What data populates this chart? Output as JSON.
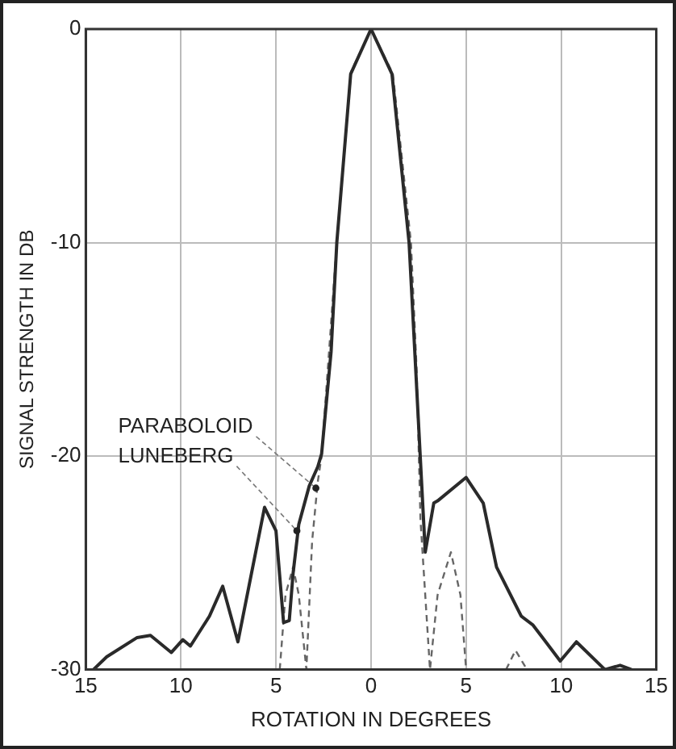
{
  "chart_data": {
    "type": "line",
    "xlabel": "ROTATION IN DEGREES",
    "ylabel": "SIGNAL STRENGTH IN DB",
    "xlim": [
      -15,
      15
    ],
    "xticks": [
      {
        "value": -15,
        "label": "15"
      },
      {
        "value": -10,
        "label": "10"
      },
      {
        "value": -5,
        "label": "5"
      },
      0,
      5,
      10,
      15
    ],
    "ylim": [
      -30,
      0
    ],
    "yticks": [
      -30,
      -20,
      -10,
      0
    ],
    "grid": true,
    "legend": false,
    "marker": "none",
    "series": [
      {
        "color": "#2a2a2a",
        "line_style": "solid",
        "x": [
          -14.6,
          -13.9,
          -12.3,
          -11.6,
          -10.5,
          -9.9,
          -9.5,
          -8.5,
          -7.8,
          -7.0,
          -5.6,
          -5.0,
          -4.6,
          -4.3,
          -4.1,
          -3.8,
          -3.25,
          -2.8,
          -2.6,
          -2.1,
          -1.8,
          -1.07,
          0,
          1.1,
          2.0,
          2.3,
          2.85,
          3.3,
          3.5,
          5.0,
          5.9,
          6.6,
          7.9,
          8.5,
          9.1,
          9.95,
          10.8,
          12.3,
          13.1,
          13.7
        ],
        "values": [
          -30,
          -29.4,
          -28.5,
          -28.4,
          -29.2,
          -28.6,
          -28.9,
          -27.5,
          -26.1,
          -28.7,
          -22.4,
          -23.5,
          -27.8,
          -27.7,
          -25.5,
          -23.2,
          -21.4,
          -20.5,
          -19.9,
          -15.1,
          -10,
          -2.1,
          0,
          -2.1,
          -10,
          -15.1,
          -24.5,
          -22.2,
          -22.1,
          -21.0,
          -22.2,
          -25.2,
          -27.5,
          -27.9,
          -28.6,
          -29.6,
          -28.7,
          -30,
          -29.8,
          -30
        ]
      },
      {
        "color": "#666666",
        "line_style": "dashed",
        "x": [
          -4.8,
          -4.5,
          -4.1,
          -3.8,
          -3.4,
          -3.1,
          -2.8,
          -2.6,
          -1.8,
          -1.05,
          0,
          1.15,
          2.1,
          2.4,
          2.6,
          3.1,
          3.5,
          4.2,
          4.7,
          5.0,
          6,
          7.1,
          7.6,
          8.2
        ],
        "values": [
          -30,
          -26.5,
          -25.2,
          -26.5,
          -30,
          -24,
          -21.2,
          -20,
          -10,
          -2,
          0,
          -2.1,
          -10,
          -16,
          -23,
          -30,
          -26.5,
          -24.5,
          -26.5,
          -30,
          null,
          -30,
          -29.1,
          -30
        ]
      }
    ],
    "annotations": [
      {
        "text": "PARABOLOID",
        "x": -2.9,
        "y": -21.5
      },
      {
        "text": "LUNEBERG",
        "x": -3.9,
        "y": -23.5
      }
    ]
  }
}
